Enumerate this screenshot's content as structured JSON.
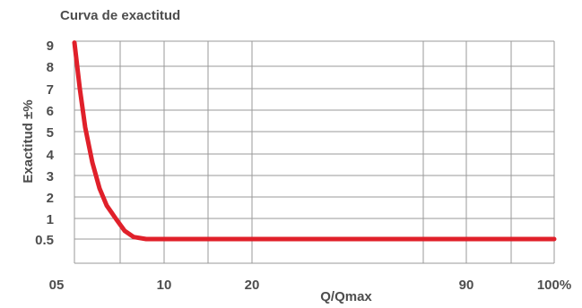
{
  "chart_data": {
    "type": "line",
    "title": "Curva de exactitud",
    "xlabel": "Q/Qmax",
    "ylabel": "Exactitud ±%",
    "x_tick_labels": [
      "05",
      "10",
      "20",
      "90",
      "100%"
    ],
    "y_tick_labels": [
      "0.5",
      "1",
      "2",
      "3",
      "4",
      "5",
      "6",
      "7",
      "8",
      "9"
    ],
    "y_ticks": [
      0.5,
      1,
      2,
      3,
      4,
      5,
      6,
      7,
      8,
      9
    ],
    "ylim": [
      0.5,
      9
    ],
    "grid": true,
    "series": [
      {
        "color": "#e0202a",
        "points": [
          {
            "x": 5.0,
            "y": 9.1
          },
          {
            "x": 5.3,
            "y": 7.0
          },
          {
            "x": 5.6,
            "y": 5.2
          },
          {
            "x": 6.0,
            "y": 3.6
          },
          {
            "x": 6.4,
            "y": 2.4
          },
          {
            "x": 6.8,
            "y": 1.6
          },
          {
            "x": 7.3,
            "y": 1.0
          },
          {
            "x": 7.8,
            "y": 0.7
          },
          {
            "x": 8.3,
            "y": 0.55
          },
          {
            "x": 9.0,
            "y": 0.5
          },
          {
            "x": 100,
            "y": 0.5
          }
        ]
      }
    ]
  }
}
